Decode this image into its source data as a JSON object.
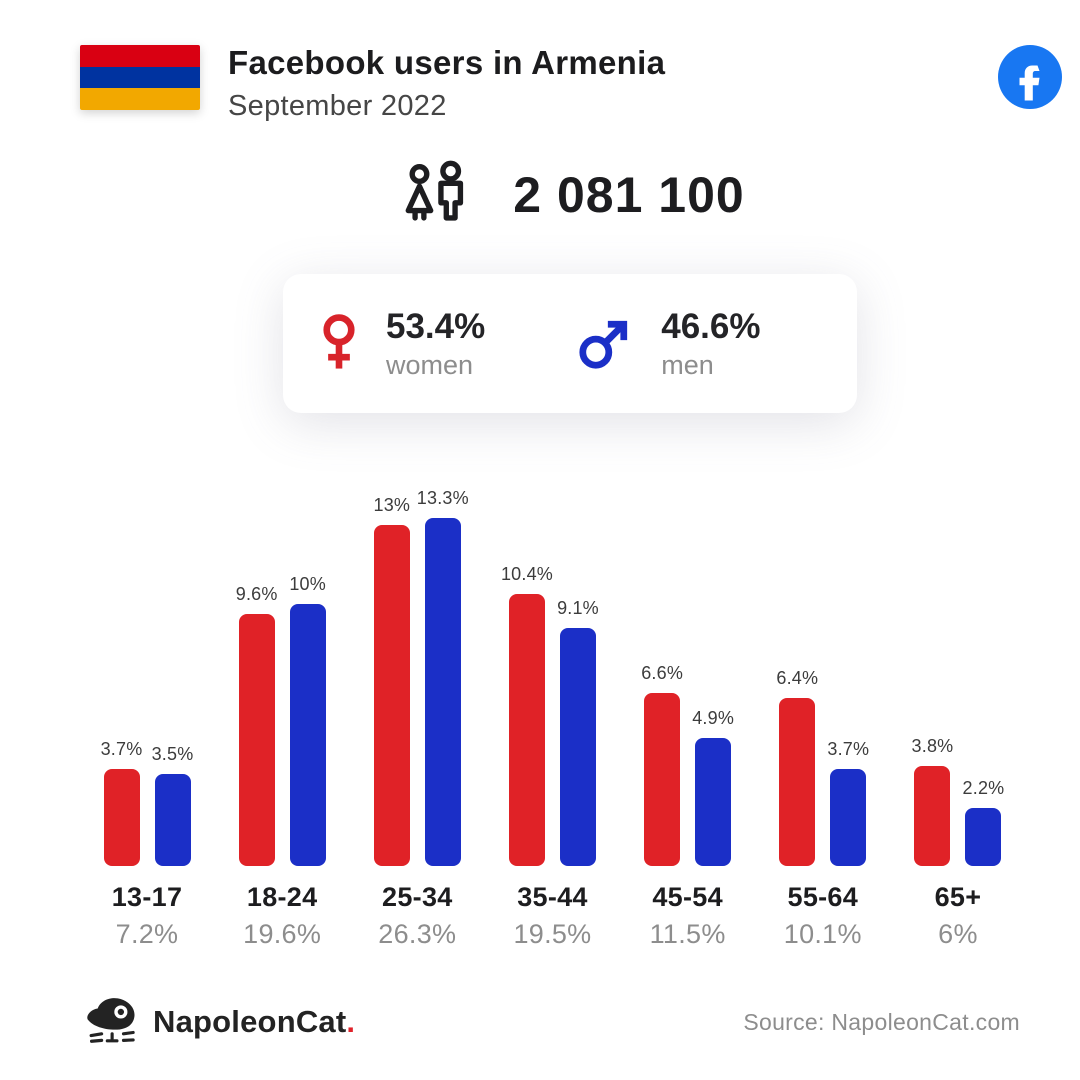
{
  "header": {
    "title": "Facebook users in Armenia",
    "subtitle": "September 2022"
  },
  "total": {
    "value": "2 081 100"
  },
  "gender": {
    "women": {
      "percent": "53.4%",
      "label": "women"
    },
    "men": {
      "percent": "46.6%",
      "label": "men"
    }
  },
  "chart_data": {
    "type": "bar",
    "categories": [
      "13-17",
      "18-24",
      "25-34",
      "35-44",
      "45-54",
      "55-64",
      "65+"
    ],
    "series": [
      {
        "name": "women",
        "color": "#e02227",
        "values": [
          3.7,
          9.6,
          13,
          10.4,
          6.6,
          6.4,
          3.8
        ],
        "labels": [
          "3.7%",
          "9.6%",
          "13%",
          "10.4%",
          "6.6%",
          "6.4%",
          "3.8%"
        ]
      },
      {
        "name": "men",
        "color": "#1b2fc7",
        "values": [
          3.5,
          10,
          13.3,
          9.1,
          4.9,
          3.7,
          2.2
        ],
        "labels": [
          "3.5%",
          "10%",
          "13.3%",
          "9.1%",
          "4.9%",
          "3.7%",
          "2.2%"
        ]
      }
    ],
    "group_totals": [
      "7.2%",
      "19.6%",
      "26.3%",
      "19.5%",
      "11.5%",
      "10.1%",
      "6%"
    ],
    "ylim": [
      0,
      14
    ],
    "grid": false,
    "legend": "none",
    "value_labels": "above-bars"
  },
  "footer": {
    "brand": "NapoleonCat",
    "brand_dot": ".",
    "source": "Source: NapoleonCat.com"
  },
  "colors": {
    "bar_red": "#e02227",
    "bar_blue": "#1b2fc7",
    "flag_red": "#d90012",
    "flag_blue": "#0033a0",
    "flag_orange": "#f2a800",
    "facebook_blue": "#1877f2",
    "female_red": "#d8232a",
    "male_blue": "#1b2fc7",
    "dot_red": "#e0222a",
    "text_dark": "#1d1d1f",
    "text_gray": "#8d8d8d"
  },
  "icons": [
    "armenia-flag",
    "facebook-icon",
    "people-icon",
    "female-icon",
    "male-icon",
    "napoleoncat-logo-icon"
  ]
}
